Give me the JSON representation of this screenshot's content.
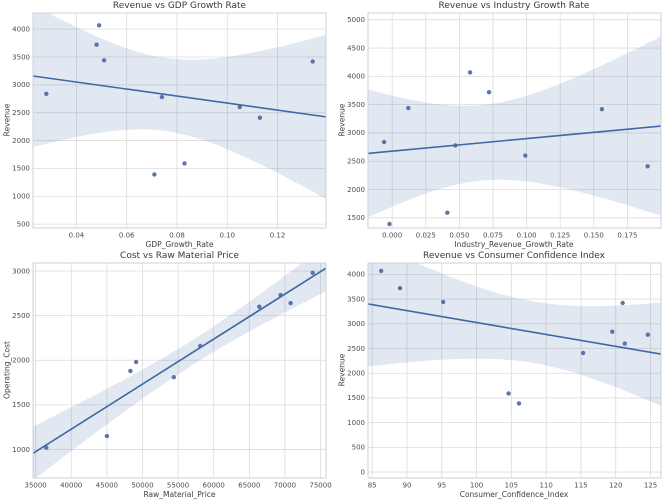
{
  "figure": {
    "background": "#ffffff",
    "layout": "2x2-subplots"
  },
  "style": {
    "accent": "#4c72b0",
    "point_color": "#47699f",
    "line_color": "#3f67a3",
    "band_opacity": 0.16,
    "grid_color": "#dcdcdc",
    "spine_color": "#cdd1d8",
    "tick_color": "#4d4d4d",
    "title_color": "#3a3a3a"
  },
  "chart_data": [
    {
      "type": "scatter",
      "title": "Revenue vs GDP Growth Rate",
      "xlabel": "GDP_Growth_Rate",
      "ylabel": "Revenue",
      "regression_line": true,
      "confidence_band": "95%",
      "grid": true,
      "legend": "none",
      "xlim": [
        0.0227,
        0.1393
      ],
      "ylim": [
        430,
        4290
      ],
      "xticks": {
        "values": [
          0.04,
          0.06,
          0.08,
          0.1,
          0.12
        ],
        "labels": [
          "0.04",
          "0.06",
          "0.08",
          "0.10",
          "0.12"
        ]
      },
      "yticks": {
        "values": [
          500,
          1000,
          1500,
          2000,
          2500,
          3000,
          3500,
          4000
        ],
        "labels": [
          "500",
          "1000",
          "1500",
          "2000",
          "2500",
          "3000",
          "3500",
          "4000"
        ]
      },
      "points": [
        [
          0.028,
          2840
        ],
        [
          0.048,
          3720
        ],
        [
          0.049,
          4070
        ],
        [
          0.051,
          3440
        ],
        [
          0.071,
          1390
        ],
        [
          0.074,
          2780
        ],
        [
          0.083,
          1590
        ],
        [
          0.105,
          2600
        ],
        [
          0.113,
          2410
        ],
        [
          0.134,
          3420
        ]
      ]
    },
    {
      "type": "scatter",
      "title": "Revenue vs Industry Growth Rate",
      "xlabel": "Industry_Revenue_Growth_Rate",
      "ylabel": "Revenue",
      "regression_line": true,
      "confidence_band": "95%",
      "grid": true,
      "legend": "none",
      "xlim": [
        -0.018,
        0.2
      ],
      "ylim": [
        1320,
        5120
      ],
      "xticks": {
        "values": [
          0.0,
          0.025,
          0.05,
          0.075,
          0.1,
          0.125,
          0.15,
          0.175
        ],
        "labels": [
          "0.000",
          "0.025",
          "0.050",
          "0.075",
          "0.100",
          "0.125",
          "0.150",
          "0.175"
        ]
      },
      "yticks": {
        "values": [
          1500,
          2000,
          2500,
          3000,
          3500,
          4000,
          4500,
          5000
        ],
        "labels": [
          "1500",
          "2000",
          "2500",
          "3000",
          "3500",
          "4000",
          "4500",
          "5000"
        ]
      },
      "points": [
        [
          -0.006,
          2840
        ],
        [
          -0.002,
          1390
        ],
        [
          0.012,
          3440
        ],
        [
          0.041,
          1590
        ],
        [
          0.047,
          2780
        ],
        [
          0.058,
          4070
        ],
        [
          0.072,
          3720
        ],
        [
          0.099,
          2600
        ],
        [
          0.156,
          3420
        ],
        [
          0.19,
          2410
        ]
      ]
    },
    {
      "type": "scatter",
      "title": "Cost vs Raw Material Price",
      "xlabel": "Raw_Material_Price",
      "ylabel": "Operating_Cost",
      "regression_line": true,
      "confidence_band": "95%",
      "grid": true,
      "legend": "none",
      "xlim": [
        34630,
        75770
      ],
      "ylim": [
        680,
        3090
      ],
      "xticks": {
        "values": [
          35000,
          40000,
          45000,
          50000,
          55000,
          60000,
          65000,
          70000,
          75000
        ],
        "labels": [
          "35000",
          "40000",
          "45000",
          "50000",
          "55000",
          "60000",
          "65000",
          "70000",
          "75000"
        ]
      },
      "yticks": {
        "values": [
          1000,
          1500,
          2000,
          2500,
          3000
        ],
        "labels": [
          "1000",
          "1500",
          "2000",
          "2500",
          "3000"
        ]
      },
      "points": [
        [
          36500,
          1020
        ],
        [
          45000,
          1150
        ],
        [
          48300,
          1880
        ],
        [
          49100,
          1980
        ],
        [
          54400,
          1810
        ],
        [
          58100,
          2160
        ],
        [
          66400,
          2600
        ],
        [
          69400,
          2730
        ],
        [
          70800,
          2640
        ],
        [
          73900,
          2980
        ]
      ]
    },
    {
      "type": "scatter",
      "title": "Revenue vs Consumer Confidence Index",
      "xlabel": "Consumer_Confidence_Index",
      "ylabel": "Revenue",
      "regression_line": true,
      "confidence_band": "95%",
      "grid": true,
      "legend": "none",
      "xlim": [
        84.4,
        126.5
      ],
      "ylim": [
        -120,
        4230
      ],
      "xticks": {
        "values": [
          85,
          90,
          95,
          100,
          105,
          110,
          115,
          120,
          125
        ],
        "labels": [
          "85",
          "90",
          "95",
          "100",
          "105",
          "110",
          "115",
          "120",
          "125"
        ]
      },
      "yticks": {
        "values": [
          0,
          500,
          1000,
          1500,
          2000,
          2500,
          3000,
          3500,
          4000
        ],
        "labels": [
          "0",
          "500",
          "1000",
          "1500",
          "2000",
          "2500",
          "3000",
          "3500",
          "4000"
        ]
      },
      "points": [
        [
          86.3,
          4070
        ],
        [
          89.0,
          3720
        ],
        [
          95.2,
          3440
        ],
        [
          104.6,
          1590
        ],
        [
          106.1,
          1390
        ],
        [
          115.3,
          2410
        ],
        [
          119.5,
          2840
        ],
        [
          121.0,
          3420
        ],
        [
          121.3,
          2600
        ],
        [
          124.6,
          2780
        ]
      ]
    }
  ]
}
